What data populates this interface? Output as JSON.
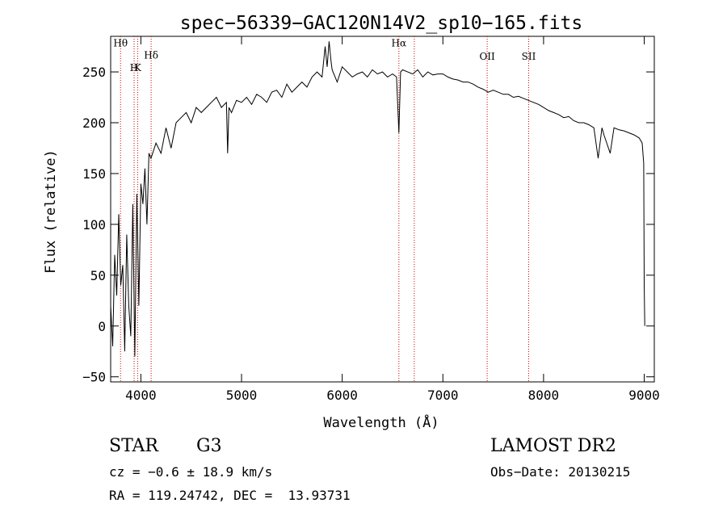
{
  "info": {
    "class": "STAR",
    "subclass": "G3",
    "survey": "LAMOST DR2",
    "cz": "cz = −0.6 ± 18.9 km/s",
    "obs_date": "Obs−Date: 20130215",
    "coords": "RA = 119.24742, DEC =  13.93731"
  },
  "chart_data": {
    "type": "line",
    "title": "spec−56339−GAC120N14V2_sp10−165.fits",
    "xlabel": "Wavelength (Å)",
    "ylabel": "Flux (relative)",
    "xlim": [
      3700,
      9100
    ],
    "ylim": [
      -55,
      285
    ],
    "x_ticks": [
      4000,
      5000,
      6000,
      7000,
      8000,
      9000
    ],
    "y_ticks": [
      -50,
      0,
      50,
      100,
      150,
      200,
      250
    ],
    "x_tick_labels": [
      "4000",
      "5000",
      "6000",
      "7000",
      "8000",
      "9000"
    ],
    "y_tick_labels": [
      "−50",
      "0",
      "50",
      "100",
      "150",
      "200",
      "250"
    ],
    "grid": false,
    "line_color": "#000000",
    "marker_color": "#cc0000",
    "series": [
      {
        "x": [
          3700,
          3720,
          3740,
          3760,
          3780,
          3800,
          3820,
          3840,
          3860,
          3880,
          3900,
          3920,
          3940,
          3960,
          3980,
          4000,
          4020,
          4040,
          4060,
          4080,
          4100,
          4150,
          4200,
          4250,
          4300,
          4350,
          4400,
          4450,
          4500,
          4550,
          4600,
          4650,
          4700,
          4750,
          4800,
          4850,
          4862,
          4875,
          4900,
          4950,
          5000,
          5050,
          5100,
          5150,
          5200,
          5250,
          5300,
          5350,
          5400,
          5450,
          5500,
          5550,
          5600,
          5650,
          5700,
          5750,
          5800,
          5830,
          5850,
          5870,
          5890,
          5900,
          5950,
          6000,
          6050,
          6100,
          6150,
          6200,
          6250,
          6300,
          6350,
          6400,
          6450,
          6500,
          6540,
          6563,
          6580,
          6600,
          6650,
          6700,
          6750,
          6800,
          6850,
          6900,
          6950,
          7000,
          7050,
          7100,
          7150,
          7200,
          7250,
          7300,
          7350,
          7400,
          7450,
          7500,
          7550,
          7600,
          7650,
          7700,
          7750,
          7800,
          7850,
          7900,
          7950,
          8000,
          8050,
          8100,
          8150,
          8200,
          8250,
          8300,
          8350,
          8400,
          8450,
          8500,
          8542,
          8580,
          8600,
          8662,
          8700,
          8750,
          8800,
          8850,
          8900,
          8950,
          8980,
          8995,
          9000,
          9005
        ],
        "y": [
          20,
          -20,
          70,
          30,
          110,
          40,
          60,
          -25,
          90,
          20,
          -10,
          120,
          -30,
          130,
          20,
          140,
          120,
          155,
          100,
          170,
          165,
          180,
          170,
          195,
          175,
          200,
          205,
          210,
          200,
          215,
          210,
          215,
          220,
          225,
          215,
          220,
          170,
          215,
          210,
          222,
          220,
          225,
          218,
          228,
          225,
          220,
          230,
          232,
          225,
          238,
          230,
          235,
          240,
          235,
          245,
          250,
          245,
          275,
          255,
          280,
          260,
          252,
          240,
          255,
          250,
          245,
          248,
          250,
          245,
          252,
          248,
          250,
          245,
          248,
          245,
          190,
          250,
          252,
          250,
          248,
          252,
          245,
          250,
          247,
          248,
          248,
          245,
          243,
          242,
          240,
          240,
          238,
          235,
          233,
          230,
          232,
          230,
          228,
          228,
          225,
          226,
          224,
          222,
          220,
          218,
          215,
          212,
          210,
          208,
          205,
          206,
          202,
          200,
          200,
          198,
          195,
          165,
          195,
          188,
          170,
          195,
          193,
          192,
          190,
          188,
          185,
          180,
          160,
          40,
          0
        ]
      }
    ],
    "line_markers": [
      {
        "label": "Hθ",
        "x": 3798,
        "label_y": 275
      },
      {
        "label": "H",
        "x": 3933,
        "label_y": 251
      },
      {
        "label": "K",
        "x": 3968,
        "label_y": 251
      },
      {
        "label": "Hδ",
        "x": 4102,
        "label_y": 263
      },
      {
        "label": "Hα",
        "x": 6563,
        "label_y": 275
      },
      {
        "label": "",
        "x": 6716,
        "label_y": 0
      },
      {
        "label": "OII",
        "x": 7440,
        "label_y": 262
      },
      {
        "label": "SII",
        "x": 7852,
        "label_y": 262
      }
    ]
  }
}
